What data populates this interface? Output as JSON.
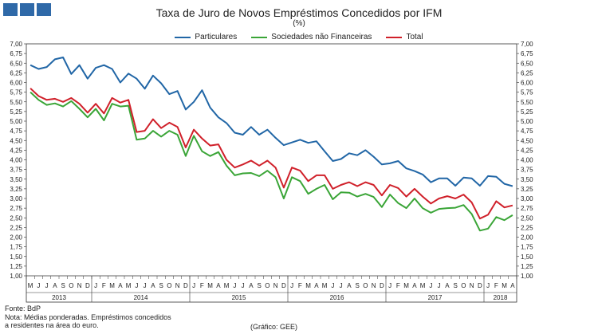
{
  "header": {
    "title": "Taxa de Juro de Novos Empréstimos Concedidos por IFM",
    "subtitle": "(%)"
  },
  "footer": {
    "source": "Fonte: BdP",
    "note_line1": "Nota: Médias ponderadas.  Empréstimos concedidos",
    "note_line2": "a residentes na área do euro.",
    "credit": "(Gráfico: GEE)"
  },
  "colors": {
    "particulares": "#2166a6",
    "sociedades": "#3aa537",
    "total": "#d0202a",
    "logo": "#2f69a8"
  },
  "chart_data": {
    "type": "line",
    "title": "Taxa de Juro de Novos Empréstimos Concedidos por IFM",
    "subtitle": "(%)",
    "ylim": [
      1.0,
      7.0
    ],
    "yticks": [
      "1,00",
      "1,25",
      "1,50",
      "1,75",
      "2,00",
      "2,25",
      "2,50",
      "2,75",
      "3,00",
      "3,25",
      "3,50",
      "3,75",
      "4,00",
      "4,25",
      "4,50",
      "4,75",
      "5,00",
      "5,25",
      "5,50",
      "5,75",
      "6,00",
      "6,25",
      "6,50",
      "6,75",
      "7,00"
    ],
    "month_labels": [
      "M",
      "J",
      "J",
      "A",
      "S",
      "O",
      "N",
      "D",
      "J",
      "F",
      "M",
      "A",
      "M",
      "J",
      "J",
      "A",
      "S",
      "O",
      "N",
      "D",
      "J",
      "F",
      "M",
      "A",
      "M",
      "J",
      "J",
      "A",
      "S",
      "O",
      "N",
      "D",
      "J",
      "F",
      "M",
      "A",
      "M",
      "J",
      "J",
      "A",
      "S",
      "O",
      "N",
      "D",
      "J",
      "F",
      "M",
      "A",
      "M",
      "J",
      "J",
      "A",
      "S",
      "O",
      "N",
      "D",
      "J",
      "F",
      "M",
      "A"
    ],
    "years": [
      {
        "label": "2013",
        "start": 0,
        "end": 8
      },
      {
        "label": "2014",
        "start": 8,
        "end": 20
      },
      {
        "label": "2015",
        "start": 20,
        "end": 32
      },
      {
        "label": "2016",
        "start": 32,
        "end": 44
      },
      {
        "label": "2017",
        "start": 44,
        "end": 56
      },
      {
        "label": "2018",
        "start": 56,
        "end": 60
      }
    ],
    "grid": false,
    "legend": "top-center",
    "series": [
      {
        "name": "Particulares",
        "values": [
          6.45,
          6.35,
          6.4,
          6.6,
          6.65,
          6.22,
          6.45,
          6.1,
          6.38,
          6.45,
          6.35,
          6.0,
          6.23,
          6.1,
          5.84,
          6.18,
          5.98,
          5.7,
          5.78,
          5.3,
          5.5,
          5.8,
          5.35,
          5.1,
          4.95,
          4.7,
          4.65,
          4.85,
          4.65,
          4.78,
          4.57,
          4.38,
          4.45,
          4.52,
          4.44,
          4.48,
          4.22,
          3.97,
          4.02,
          4.17,
          4.12,
          4.25,
          4.08,
          3.88,
          3.91,
          3.97,
          3.78,
          3.71,
          3.62,
          3.42,
          3.52,
          3.52,
          3.33,
          3.54,
          3.52,
          3.33,
          3.58,
          3.56,
          3.38,
          3.32
        ]
      },
      {
        "name": "Sociedades não Financeiras",
        "values": [
          5.75,
          5.55,
          5.42,
          5.46,
          5.38,
          5.52,
          5.32,
          5.1,
          5.32,
          5.02,
          5.45,
          5.38,
          5.4,
          4.52,
          4.55,
          4.75,
          4.6,
          4.75,
          4.65,
          4.1,
          4.62,
          4.22,
          4.1,
          4.2,
          3.85,
          3.6,
          3.65,
          3.66,
          3.58,
          3.72,
          3.55,
          3.0,
          3.55,
          3.45,
          3.12,
          3.25,
          3.35,
          2.98,
          3.16,
          3.15,
          3.05,
          3.12,
          3.04,
          2.78,
          3.1,
          2.88,
          2.75,
          3.0,
          2.75,
          2.63,
          2.73,
          2.75,
          2.76,
          2.83,
          2.6,
          2.17,
          2.22,
          2.52,
          2.44,
          2.57
        ]
      },
      {
        "name": "Total",
        "values": [
          5.85,
          5.65,
          5.55,
          5.58,
          5.5,
          5.6,
          5.45,
          5.22,
          5.45,
          5.2,
          5.6,
          5.48,
          5.55,
          4.72,
          4.75,
          5.05,
          4.82,
          4.96,
          4.85,
          4.32,
          4.78,
          4.55,
          4.37,
          4.4,
          4.0,
          3.8,
          3.88,
          3.98,
          3.85,
          3.98,
          3.8,
          3.28,
          3.8,
          3.72,
          3.45,
          3.6,
          3.6,
          3.25,
          3.35,
          3.42,
          3.32,
          3.42,
          3.35,
          3.08,
          3.35,
          3.27,
          3.05,
          3.25,
          3.05,
          2.87,
          3.0,
          3.06,
          3.0,
          3.1,
          2.9,
          2.48,
          2.58,
          2.93,
          2.77,
          2.82
        ]
      }
    ]
  }
}
